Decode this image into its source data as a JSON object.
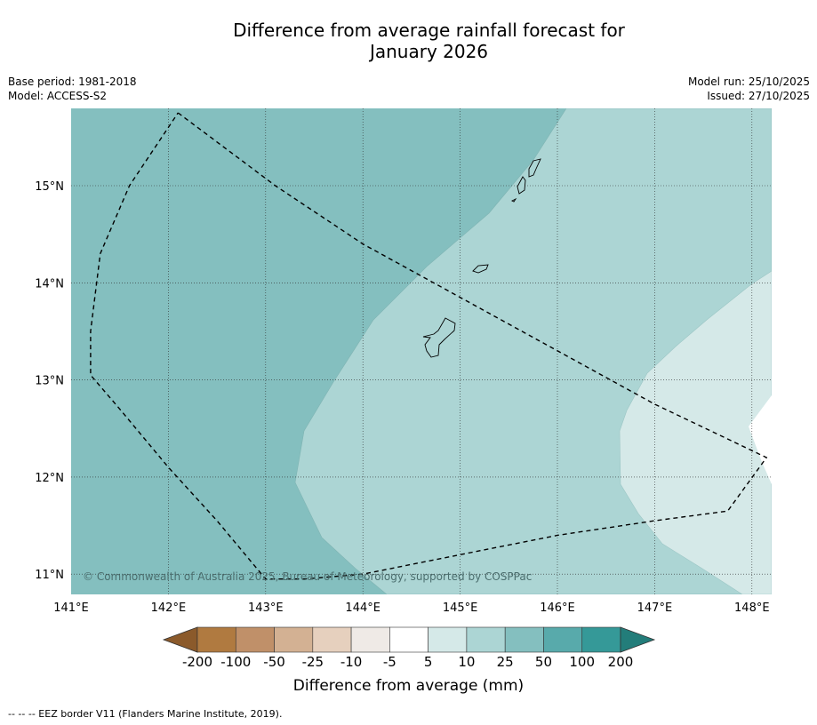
{
  "header": {
    "title_line1": "Difference from average rainfall forecast for",
    "title_line2": "January 2026",
    "base_period": "Base period: 1981-2018",
    "model": "Model: ACCESS-S2",
    "model_run": "Model run: 25/10/2025",
    "issued": "Issued: 27/10/2025"
  },
  "map": {
    "lon_range": [
      141.0,
      148.2
    ],
    "lat_range": [
      10.8,
      15.8
    ],
    "lon_ticks": [
      "141°E",
      "142°E",
      "143°E",
      "144°E",
      "145°E",
      "146°E",
      "147°E",
      "148°E"
    ],
    "lat_ticks": [
      "15°N",
      "14°N",
      "13°N",
      "12°N",
      "11°N"
    ],
    "copyright": "© Commonwealth of Australia 2025, Bureau of Meteorology, supported by COSPPac",
    "eez_border": [
      [
        142.1,
        15.75
      ],
      [
        143.1,
        15.0
      ],
      [
        144.0,
        14.4
      ],
      [
        145.0,
        13.85
      ],
      [
        146.0,
        13.3
      ],
      [
        147.0,
        12.75
      ],
      [
        148.15,
        12.2
      ],
      [
        147.75,
        11.65
      ],
      [
        147.0,
        11.55
      ],
      [
        146.0,
        11.4
      ],
      [
        145.0,
        11.2
      ],
      [
        144.0,
        11.0
      ],
      [
        143.4,
        10.95
      ],
      [
        143.0,
        10.95
      ],
      [
        142.5,
        11.55
      ],
      [
        142.0,
        12.1
      ],
      [
        141.5,
        12.7
      ],
      [
        141.2,
        13.05
      ],
      [
        141.2,
        13.5
      ],
      [
        141.3,
        14.3
      ],
      [
        141.6,
        15.0
      ],
      [
        142.1,
        15.75
      ]
    ]
  },
  "colorbar": {
    "labels": [
      "-200",
      "-100",
      "-50",
      "-25",
      "-10",
      "-5",
      "5",
      "10",
      "25",
      "50",
      "100",
      "200"
    ],
    "colors": [
      "#8b5a2b",
      "#b07a40",
      "#c09069",
      "#d3b193",
      "#e6d0be",
      "#efeae6",
      "#ffffff",
      "#d5e9e8",
      "#acd5d4",
      "#84bfbf",
      "#58aaab",
      "#359998",
      "#237d7a"
    ],
    "title": "Difference from average (mm)"
  },
  "footnote": "--  --  -- EEZ border V11 (Flanders Marine Institute, 2019)."
}
